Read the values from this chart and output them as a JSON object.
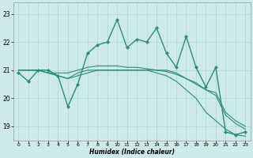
{
  "xlabel": "Humidex (Indice chaleur)",
  "xlim": [
    -0.5,
    23.5
  ],
  "ylim": [
    18.5,
    23.4
  ],
  "yticks": [
    19,
    20,
    21,
    22,
    23
  ],
  "xticks": [
    0,
    1,
    2,
    3,
    4,
    5,
    6,
    7,
    8,
    9,
    10,
    11,
    12,
    13,
    14,
    15,
    16,
    17,
    18,
    19,
    20,
    21,
    22,
    23
  ],
  "bg_color": "#cceae7",
  "line_color": "#2e8b7a",
  "grid_color": "#aed6d0",
  "series": [
    {
      "y": [
        20.9,
        20.6,
        21.0,
        21.0,
        20.8,
        19.7,
        20.5,
        21.6,
        21.9,
        22.0,
        22.8,
        21.8,
        22.1,
        22.0,
        22.5,
        21.6,
        21.1,
        22.2,
        21.1,
        20.4,
        21.1,
        18.8,
        18.7,
        18.8
      ],
      "marker": true,
      "lw": 1.0
    },
    {
      "y": [
        21.0,
        21.0,
        21.0,
        20.9,
        20.8,
        20.7,
        20.9,
        21.0,
        21.0,
        21.0,
        21.0,
        21.0,
        21.0,
        21.0,
        21.0,
        21.0,
        20.9,
        20.7,
        20.5,
        20.3,
        20.2,
        19.5,
        19.2,
        19.0
      ],
      "marker": false,
      "lw": 0.8
    },
    {
      "y": [
        21.0,
        21.0,
        21.0,
        20.9,
        20.8,
        20.7,
        20.8,
        20.9,
        21.0,
        21.0,
        21.0,
        21.0,
        21.0,
        21.0,
        20.9,
        20.8,
        20.6,
        20.3,
        20.0,
        19.5,
        19.2,
        18.9,
        18.7,
        18.65
      ],
      "marker": false,
      "lw": 0.8
    },
    {
      "y": [
        21.0,
        21.0,
        21.0,
        20.9,
        20.9,
        20.9,
        21.0,
        21.1,
        21.15,
        21.15,
        21.15,
        21.1,
        21.1,
        21.05,
        21.0,
        20.95,
        20.85,
        20.7,
        20.55,
        20.3,
        20.1,
        19.4,
        19.1,
        18.9
      ],
      "marker": false,
      "lw": 0.8
    }
  ]
}
